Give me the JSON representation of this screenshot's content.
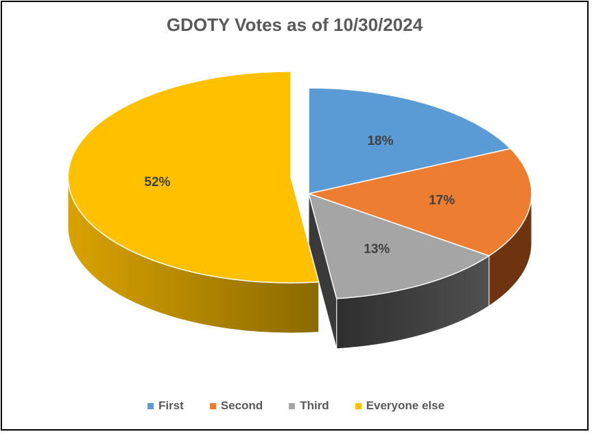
{
  "chart_data": {
    "type": "pie",
    "title": "GDOTY Votes as of 10/30/2024",
    "categories": [
      "First",
      "Second",
      "Third",
      "Everyone else"
    ],
    "values": [
      18,
      17,
      13,
      52
    ],
    "data_labels": [
      "18%",
      "17%",
      "13%",
      "52%"
    ],
    "colors": [
      "#5B9BD5",
      "#ED7D31",
      "#A5A5A5",
      "#FFC000"
    ],
    "side_colors": [
      "#3D6E9C",
      "#6E3410",
      "#3F3F3F",
      "#C99700"
    ],
    "exploded": "Everyone else",
    "style": "3d",
    "legend_position": "bottom"
  }
}
